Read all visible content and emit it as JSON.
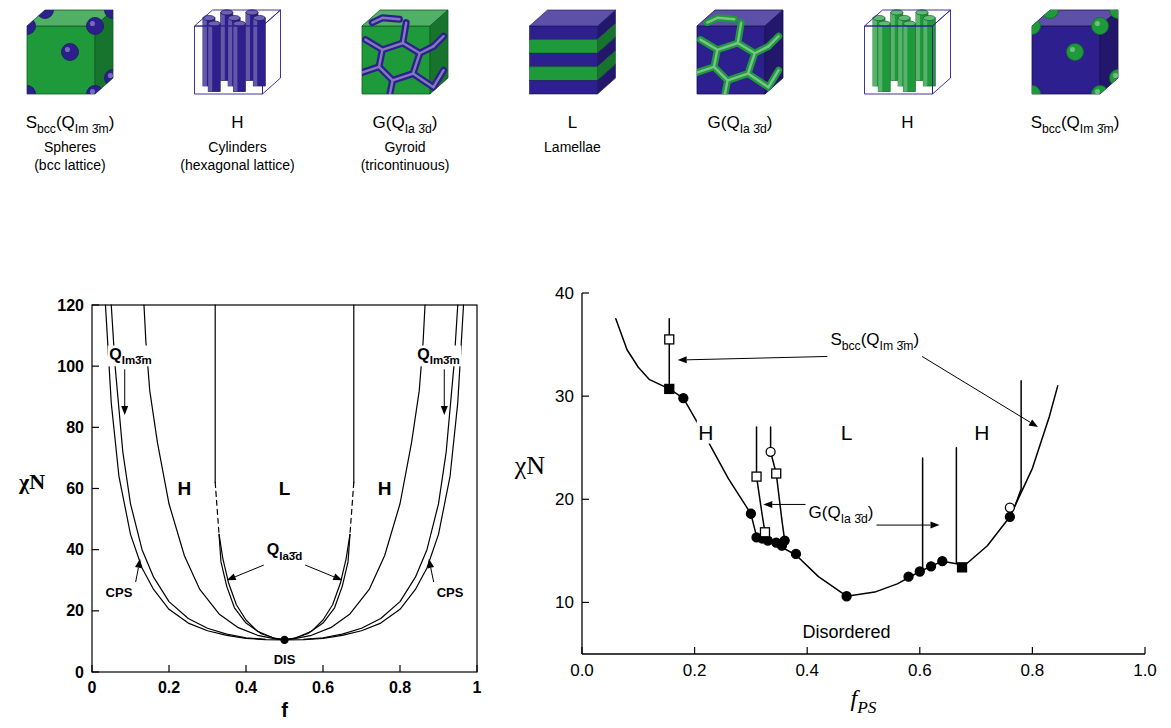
{
  "morphologies": [
    {
      "kind": "spheres",
      "colors": [
        "#2e1f8f",
        "#1f9a3b"
      ],
      "symbol": [
        "S",
        "bcc",
        "(Q",
        "Im 3̄m",
        ")"
      ],
      "description": [
        "Spheres",
        "(bcc lattice)"
      ]
    },
    {
      "kind": "cylinders",
      "colors": [
        "#2e1f8f",
        "#ffffff"
      ],
      "symbol": "H",
      "description": [
        "Cylinders",
        "(hexagonal lattice)"
      ]
    },
    {
      "kind": "gyroid",
      "colors": [
        "#2e1f8f",
        "#1f9a3b"
      ],
      "symbol": [
        "G(Q",
        "Ia 3̄d",
        ")"
      ],
      "description": [
        "Gyroid",
        "(tricontinuous)"
      ]
    },
    {
      "kind": "lamellae",
      "colors": [
        "#2e1f8f",
        "#1f9a3b"
      ],
      "symbol": "L",
      "description": [
        "Lamellae"
      ]
    },
    {
      "kind": "gyroid",
      "colors": [
        "#1f9a3b",
        "#2e1f8f"
      ],
      "symbol": [
        "G(Q",
        "Ia 3̄d",
        ")"
      ]
    },
    {
      "kind": "cylinders",
      "colors": [
        "#1f9a3b",
        "#ffffff"
      ],
      "symbol": "H"
    },
    {
      "kind": "spheres",
      "colors": [
        "#1f9a3b",
        "#2e1f8f"
      ],
      "symbol": [
        "S",
        "bcc",
        "(Q",
        "Im 3̄m",
        ")"
      ]
    }
  ],
  "chart_data": [
    {
      "type": "line",
      "xlabel": "f",
      "ylabel": "χN",
      "xlim": [
        0,
        1
      ],
      "ylim": [
        0,
        120
      ],
      "xticks": [
        0,
        0.2,
        0.4,
        0.6,
        0.8,
        1
      ],
      "yticks": [
        0,
        20,
        40,
        60,
        80,
        100,
        120
      ],
      "grid": false,
      "color": "#000000",
      "series": [
        {
          "type": "line",
          "line_style": "solid",
          "x": [
            0.035,
            0.05,
            0.07,
            0.1,
            0.13,
            0.16,
            0.2,
            0.25,
            0.3,
            0.35,
            0.4,
            0.45,
            0.5
          ],
          "values": [
            120,
            88,
            64,
            45,
            34,
            27,
            20.5,
            16,
            13.5,
            12,
            11,
            10.6,
            10.5
          ]
        },
        {
          "type": "line",
          "line_style": "solid",
          "x": [
            0.5,
            0.55,
            0.6,
            0.65,
            0.7,
            0.75,
            0.8,
            0.84,
            0.87,
            0.9,
            0.93,
            0.95,
            0.965
          ],
          "values": [
            10.5,
            10.6,
            11,
            12,
            13.5,
            16,
            20.5,
            27,
            34,
            45,
            64,
            88,
            120
          ]
        },
        {
          "type": "line",
          "line_style": "solid",
          "x": [
            0.05,
            0.06,
            0.08,
            0.1,
            0.13,
            0.16,
            0.2,
            0.25,
            0.3,
            0.35,
            0.4,
            0.45
          ],
          "values": [
            120,
            100,
            72,
            55,
            40,
            31,
            23,
            17.5,
            14.3,
            12.4,
            11.2,
            10.65
          ]
        },
        {
          "type": "line",
          "line_style": "solid",
          "x": [
            0.55,
            0.6,
            0.65,
            0.7,
            0.75,
            0.8,
            0.84,
            0.87,
            0.9,
            0.92,
            0.94,
            0.95
          ],
          "values": [
            10.65,
            11.2,
            12.4,
            14.3,
            17.5,
            23,
            31,
            40,
            55,
            72,
            100,
            120
          ]
        },
        {
          "type": "line",
          "line_style": "solid",
          "x": [
            0.135,
            0.14,
            0.15,
            0.17,
            0.2,
            0.24,
            0.28,
            0.33,
            0.38,
            0.43,
            0.47,
            0.5
          ],
          "values": [
            120,
            108,
            92,
            75,
            55,
            38,
            27,
            19,
            14.5,
            12,
            11,
            10.5
          ]
        },
        {
          "type": "line",
          "line_style": "solid",
          "x": [
            0.5,
            0.53,
            0.57,
            0.62,
            0.67,
            0.72,
            0.76,
            0.8,
            0.83,
            0.85,
            0.86,
            0.865
          ],
          "values": [
            10.5,
            11,
            12,
            14.5,
            19,
            27,
            38,
            55,
            75,
            92,
            108,
            120
          ]
        },
        {
          "type": "line",
          "line_style": "solid",
          "x": [
            0.32,
            0.32
          ],
          "values": [
            120,
            62
          ]
        },
        {
          "type": "line",
          "line_style": "dashed",
          "x": [
            0.32,
            0.33
          ],
          "values": [
            62,
            45
          ]
        },
        {
          "type": "line",
          "line_style": "solid",
          "x": [
            0.68,
            0.68
          ],
          "values": [
            120,
            62
          ]
        },
        {
          "type": "line",
          "line_style": "dashed",
          "x": [
            0.68,
            0.67
          ],
          "values": [
            62,
            45
          ]
        },
        {
          "type": "line",
          "line_style": "solid",
          "x": [
            0.33,
            0.335,
            0.35,
            0.37,
            0.4,
            0.44,
            0.48,
            0.5
          ],
          "values": [
            45,
            36,
            28,
            21,
            16,
            12.5,
            10.8,
            10.5
          ]
        },
        {
          "type": "line",
          "line_style": "solid",
          "x": [
            0.33,
            0.34,
            0.355,
            0.375,
            0.4,
            0.43,
            0.47,
            0.5
          ],
          "values": [
            45,
            37,
            29,
            22,
            17,
            13.3,
            11.2,
            10.5
          ]
        },
        {
          "type": "line",
          "line_style": "solid",
          "x": [
            0.5,
            0.52,
            0.56,
            0.6,
            0.63,
            0.65,
            0.665,
            0.67
          ],
          "values": [
            10.5,
            10.8,
            12.5,
            16,
            21,
            28,
            36,
            45
          ]
        },
        {
          "type": "line",
          "line_style": "solid",
          "x": [
            0.5,
            0.53,
            0.57,
            0.6,
            0.625,
            0.645,
            0.66,
            0.67
          ],
          "values": [
            10.5,
            11.2,
            13.3,
            17,
            22,
            29,
            37,
            45
          ]
        },
        {
          "type": "scatter",
          "marker": "circle",
          "x": [
            0.5
          ],
          "values": [
            10.5
          ]
        }
      ],
      "annotations": [
        {
          "text": "H",
          "x": 0.24,
          "y": 60
        },
        {
          "text": "L",
          "x": 0.5,
          "y": 60
        },
        {
          "text": "H",
          "x": 0.76,
          "y": 60
        },
        {
          "text": [
            "Q",
            "Im3̄m"
          ],
          "x": 0.1,
          "y": 104,
          "arrows": [
            [
              0.085,
              84
            ]
          ]
        },
        {
          "text": [
            "Q",
            "Im3̄m"
          ],
          "x": 0.9,
          "y": 104,
          "arrows": [
            [
              0.915,
              84
            ]
          ]
        },
        {
          "text": [
            "Q",
            "Ia3̄d"
          ],
          "x": 0.5,
          "y": 40,
          "arrows": [
            [
              0.35,
              30
            ],
            [
              0.65,
              30
            ]
          ]
        },
        {
          "text": "CPS",
          "x": 0.07,
          "y": 26,
          "arrows": [
            [
              0.125,
              37
            ]
          ]
        },
        {
          "text": "CPS",
          "x": 0.93,
          "y": 26,
          "arrows": [
            [
              0.875,
              37
            ]
          ]
        },
        {
          "text": "DIS",
          "x": 0.5,
          "y": 4
        }
      ]
    },
    {
      "type": "line",
      "xlabel": [
        "f",
        "PS"
      ],
      "ylabel": "χN",
      "xlim": [
        0,
        1
      ],
      "ylim": [
        5,
        40
      ],
      "xticks": [
        {
          "value": 0,
          "label": "0.0"
        },
        0.2,
        0.4,
        0.6,
        0.8,
        {
          "value": 1,
          "label": "1.0"
        }
      ],
      "yticks": [
        10,
        20,
        30,
        40
      ],
      "grid": false,
      "color": "#000000",
      "series": [
        {
          "type": "line",
          "line_style": "solid",
          "x": [
            0.06,
            0.08,
            0.1,
            0.12,
            0.155,
            0.18,
            0.22,
            0.26,
            0.3,
            0.31,
            0.34,
            0.38,
            0.42,
            0.47,
            0.52,
            0.56,
            0.6,
            0.64,
            0.68,
            0.72,
            0.76,
            0.8,
            0.83,
            0.845
          ],
          "values": [
            37.5,
            34.5,
            32.8,
            31.6,
            30.7,
            29.8,
            26,
            22,
            18.6,
            16.4,
            15.8,
            14.6,
            12.5,
            10.6,
            11,
            11.8,
            13,
            14,
            13.6,
            15.5,
            18.3,
            23,
            28,
            31
          ]
        },
        {
          "type": "line",
          "line_style": "solid",
          "x": [
            0.155,
            0.155
          ],
          "values": [
            37.5,
            30.7
          ]
        },
        {
          "type": "line",
          "line_style": "solid",
          "x": [
            0.31,
            0.31,
            0.32,
            0.325
          ],
          "values": [
            27,
            22.2,
            18.5,
            16.8
          ]
        },
        {
          "type": "line",
          "line_style": "solid",
          "x": [
            0.335,
            0.335,
            0.345,
            0.355,
            0.36
          ],
          "values": [
            27,
            24.6,
            22.5,
            18,
            16
          ]
        },
        {
          "type": "line",
          "line_style": "solid",
          "x": [
            0.605,
            0.605
          ],
          "values": [
            24,
            13.1
          ]
        },
        {
          "type": "line",
          "line_style": "solid",
          "x": [
            0.665,
            0.665
          ],
          "values": [
            25,
            13.8
          ]
        },
        {
          "type": "line",
          "line_style": "solid",
          "x": [
            0.78,
            0.78,
            0.77,
            0.76
          ],
          "values": [
            31.5,
            21,
            19.5,
            18.3
          ]
        },
        {
          "type": "scatter",
          "marker": "circle",
          "x": [
            0.18,
            0.3,
            0.31,
            0.32,
            0.33,
            0.345,
            0.355,
            0.36,
            0.38,
            0.47,
            0.58,
            0.6,
            0.62,
            0.64,
            0.76
          ],
          "values": [
            29.8,
            18.6,
            16.3,
            16.2,
            16,
            15.8,
            15.5,
            16,
            14.7,
            10.6,
            12.5,
            13,
            13.5,
            14,
            18.3
          ]
        },
        {
          "type": "scatter",
          "marker": "square",
          "x": [
            0.155,
            0.675
          ],
          "values": [
            30.7,
            13.4
          ]
        },
        {
          "type": "scatter",
          "marker": "open-square",
          "x": [
            0.155,
            0.31,
            0.325,
            0.345
          ],
          "values": [
            35.5,
            22.2,
            16.8,
            22.5
          ]
        },
        {
          "type": "scatter",
          "marker": "open-circle",
          "x": [
            0.335,
            0.76
          ],
          "values": [
            24.6,
            19.2
          ]
        }
      ],
      "annotations": [
        {
          "text": [
            "S",
            "bcc",
            "(Q",
            "Im 3̄m",
            ")"
          ],
          "x": 0.52,
          "y": 35.5,
          "arrows": [
            [
              0.17,
              33.5
            ],
            [
              0.81,
              27
            ]
          ]
        },
        {
          "text": "H",
          "x": 0.22,
          "y": 26.5
        },
        {
          "text": "L",
          "x": 0.47,
          "y": 26.5
        },
        {
          "text": "H",
          "x": 0.71,
          "y": 26.5
        },
        {
          "text": [
            "G(Q",
            "Ia 3̄d",
            ")"
          ],
          "x": 0.46,
          "y": 18.8,
          "arrows": [
            [
              0.322,
              19.5
            ],
            [
              0.635,
              17.5
            ]
          ]
        },
        {
          "text": "Disordered",
          "x": 0.47,
          "y": 7.2
        }
      ]
    }
  ]
}
